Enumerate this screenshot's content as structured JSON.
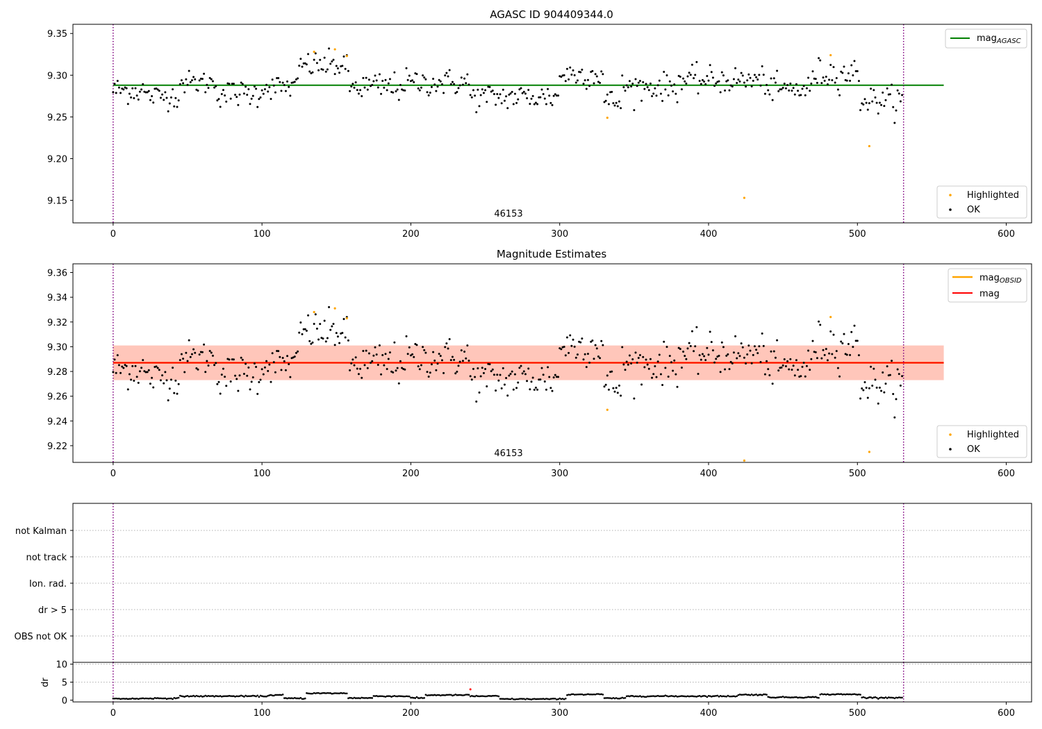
{
  "figure": {
    "panel1_title": "AGASC ID 904409344.0",
    "panel2_title": "Magnitude Estimates",
    "obsid_label": "46153",
    "ylabel_dr": "dr"
  },
  "legend": {
    "highlighted": "Highlighted",
    "ok": "OK",
    "mag_agasc_main": "mag",
    "mag_agasc_sub": "AGASC",
    "mag_obsid_main": "mag",
    "mag_obsid_sub": "OBSID",
    "mag": "mag"
  },
  "flags": [
    "not Kalman",
    "not track",
    "Ion. rad.",
    "dr > 5",
    "OBS not OK"
  ],
  "colors": {
    "ok": "#000000",
    "highlighted": "#ffa500",
    "mag_agasc": "#008000",
    "mag": "#ff0000",
    "mag_obsid": "#ffa500",
    "band_outer": "#ffc0cb",
    "band_inner": "#ffa07a",
    "obs_boundary": "#800080",
    "dr_point": "#000000",
    "dr_flag": "#ff0000"
  },
  "chart_data": [
    {
      "type": "scatter",
      "title": "AGASC ID 904409344.0",
      "xlim": [
        -27,
        617
      ],
      "ylim": [
        9.123,
        9.361
      ],
      "xticks": [
        0,
        100,
        200,
        300,
        400,
        500,
        600
      ],
      "yticks": [
        9.15,
        9.2,
        9.25,
        9.3,
        9.35
      ],
      "mag_agasc": 9.288,
      "mag_agasc_xrange": [
        0,
        558
      ],
      "obs_boundaries": [
        0,
        531
      ],
      "annotation": {
        "text": "46153",
        "x": 265
      },
      "highlighted": [
        [
          135,
          9.328
        ],
        [
          149,
          9.331
        ],
        [
          157,
          9.323
        ],
        [
          332,
          9.249
        ],
        [
          424,
          9.153
        ],
        [
          482,
          9.324
        ],
        [
          508,
          9.215
        ]
      ],
      "ok_segments": [
        {
          "x": [
            0,
            22
          ],
          "mean": 9.282,
          "sd": 0.008
        },
        {
          "x": [
            22,
            45
          ],
          "mean": 9.275,
          "sd": 0.007
        },
        {
          "x": [
            45,
            70
          ],
          "mean": 9.291,
          "sd": 0.007
        },
        {
          "x": [
            70,
            100
          ],
          "mean": 9.278,
          "sd": 0.008
        },
        {
          "x": [
            100,
            125
          ],
          "mean": 9.286,
          "sd": 0.007
        },
        {
          "x": [
            125,
            158
          ],
          "mean": 9.312,
          "sd": 0.008
        },
        {
          "x": [
            158,
            195
          ],
          "mean": 9.286,
          "sd": 0.009
        },
        {
          "x": [
            195,
            240
          ],
          "mean": 9.291,
          "sd": 0.008
        },
        {
          "x": [
            240,
            300
          ],
          "mean": 9.274,
          "sd": 0.008
        },
        {
          "x": [
            300,
            330
          ],
          "mean": 9.301,
          "sd": 0.008
        },
        {
          "x": [
            330,
            342
          ],
          "mean": 9.268,
          "sd": 0.008
        },
        {
          "x": [
            342,
            380
          ],
          "mean": 9.286,
          "sd": 0.008
        },
        {
          "x": [
            380,
            440
          ],
          "mean": 9.294,
          "sd": 0.008
        },
        {
          "x": [
            440,
            470
          ],
          "mean": 9.283,
          "sd": 0.008
        },
        {
          "x": [
            470,
            502
          ],
          "mean": 9.302,
          "sd": 0.009
        },
        {
          "x": [
            502,
            531
          ],
          "mean": 9.27,
          "sd": 0.008
        }
      ],
      "series": [
        {
          "name": "Highlighted",
          "kind": "points"
        },
        {
          "name": "OK",
          "kind": "points"
        },
        {
          "name": "mag_AGASC",
          "kind": "line",
          "value": 9.288
        }
      ]
    },
    {
      "type": "scatter",
      "title": "Magnitude Estimates",
      "xlim": [
        -27,
        617
      ],
      "ylim": [
        9.2065,
        9.367
      ],
      "xticks": [
        0,
        100,
        200,
        300,
        400,
        500,
        600
      ],
      "yticks": [
        9.22,
        9.24,
        9.26,
        9.28,
        9.3,
        9.32,
        9.34,
        9.36
      ],
      "mag": 9.287,
      "mag_obsid": 9.287,
      "mag_xrange": [
        0,
        558
      ],
      "band_outer": [
        9.273,
        9.301
      ],
      "band_inner": [
        9.273,
        9.301
      ],
      "obs_boundaries": [
        0,
        531
      ],
      "annotation": {
        "text": "46153",
        "x": 265
      },
      "highlighted": [
        [
          135,
          9.328
        ],
        [
          149,
          9.331
        ],
        [
          157,
          9.323
        ],
        [
          332,
          9.249
        ],
        [
          424,
          9.208
        ],
        [
          482,
          9.324
        ],
        [
          508,
          9.215
        ]
      ],
      "series": [
        {
          "name": "Highlighted",
          "kind": "points"
        },
        {
          "name": "OK",
          "kind": "points"
        },
        {
          "name": "mag_OBSID",
          "kind": "line",
          "value": 9.287
        },
        {
          "name": "mag",
          "kind": "line",
          "value": 9.287
        }
      ]
    },
    {
      "type": "scatter",
      "ylabel": "dr",
      "xlim": [
        -27,
        617
      ],
      "ylim": [
        -0.5,
        10.5
      ],
      "xticks": [
        0,
        100,
        200,
        300,
        400,
        500,
        600
      ],
      "yticks": [
        0,
        5,
        10
      ],
      "obs_boundaries": [
        0,
        531
      ],
      "flag_points": [
        [
          240,
          3.0
        ]
      ],
      "dr_segments": [
        {
          "x": [
            0,
            20
          ],
          "value": 0.4
        },
        {
          "x": [
            20,
            45
          ],
          "value": 0.5
        },
        {
          "x": [
            45,
            105
          ],
          "value": 1.1
        },
        {
          "x": [
            105,
            115
          ],
          "value": 1.4
        },
        {
          "x": [
            115,
            130
          ],
          "value": 0.5
        },
        {
          "x": [
            130,
            158
          ],
          "value": 1.9
        },
        {
          "x": [
            158,
            175
          ],
          "value": 0.6
        },
        {
          "x": [
            175,
            200
          ],
          "value": 1.1
        },
        {
          "x": [
            200,
            210
          ],
          "value": 0.6
        },
        {
          "x": [
            210,
            240
          ],
          "value": 1.4
        },
        {
          "x": [
            240,
            260
          ],
          "value": 1.1
        },
        {
          "x": [
            260,
            305
          ],
          "value": 0.3
        },
        {
          "x": [
            305,
            330
          ],
          "value": 1.6
        },
        {
          "x": [
            330,
            345
          ],
          "value": 0.5
        },
        {
          "x": [
            345,
            365
          ],
          "value": 1.1
        },
        {
          "x": [
            365,
            420
          ],
          "value": 1.1
        },
        {
          "x": [
            420,
            440
          ],
          "value": 1.5
        },
        {
          "x": [
            440,
            475
          ],
          "value": 0.8
        },
        {
          "x": [
            475,
            503
          ],
          "value": 1.6
        },
        {
          "x": [
            503,
            531
          ],
          "value": 0.7
        }
      ]
    }
  ]
}
